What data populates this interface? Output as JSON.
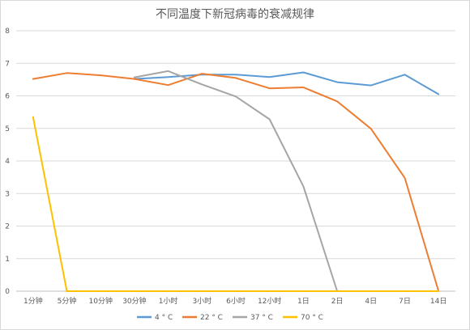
{
  "chart_data": {
    "type": "line",
    "title": "不同温度下新冠病毒的衰减规律",
    "xlabel": "",
    "ylabel": "",
    "categories": [
      "1分钟",
      "5分钟",
      "10分钟",
      "30分钟",
      "1小时",
      "3小时",
      "6小时",
      "12小时",
      "1日",
      "2日",
      "4日",
      "7日",
      "14日"
    ],
    "ylim": [
      0,
      8
    ],
    "yticks": [
      0,
      1,
      2,
      3,
      4,
      5,
      6,
      7,
      8
    ],
    "grid": true,
    "legend_position": "bottom",
    "series": [
      {
        "name": "4 ° C",
        "color": "#5b9bd5",
        "values": [
          null,
          null,
          null,
          6.52,
          6.58,
          6.65,
          6.65,
          6.58,
          6.72,
          6.42,
          6.32,
          6.65,
          6.05
        ]
      },
      {
        "name": "22 ° C",
        "color": "#ed7d31",
        "values": [
          6.52,
          6.7,
          6.63,
          6.52,
          6.33,
          6.68,
          6.55,
          6.23,
          6.26,
          5.83,
          4.99,
          3.48,
          0
        ]
      },
      {
        "name": "37 ° C",
        "color": "#a5a5a5",
        "values": [
          null,
          null,
          null,
          6.57,
          6.76,
          6.35,
          5.98,
          5.28,
          3.22,
          0,
          null,
          null,
          null
        ]
      },
      {
        "name": "70 ° C",
        "color": "#ffc000",
        "values": [
          5.35,
          0,
          0,
          0,
          0,
          0,
          0,
          0,
          0,
          0,
          0,
          0,
          0
        ]
      }
    ]
  }
}
